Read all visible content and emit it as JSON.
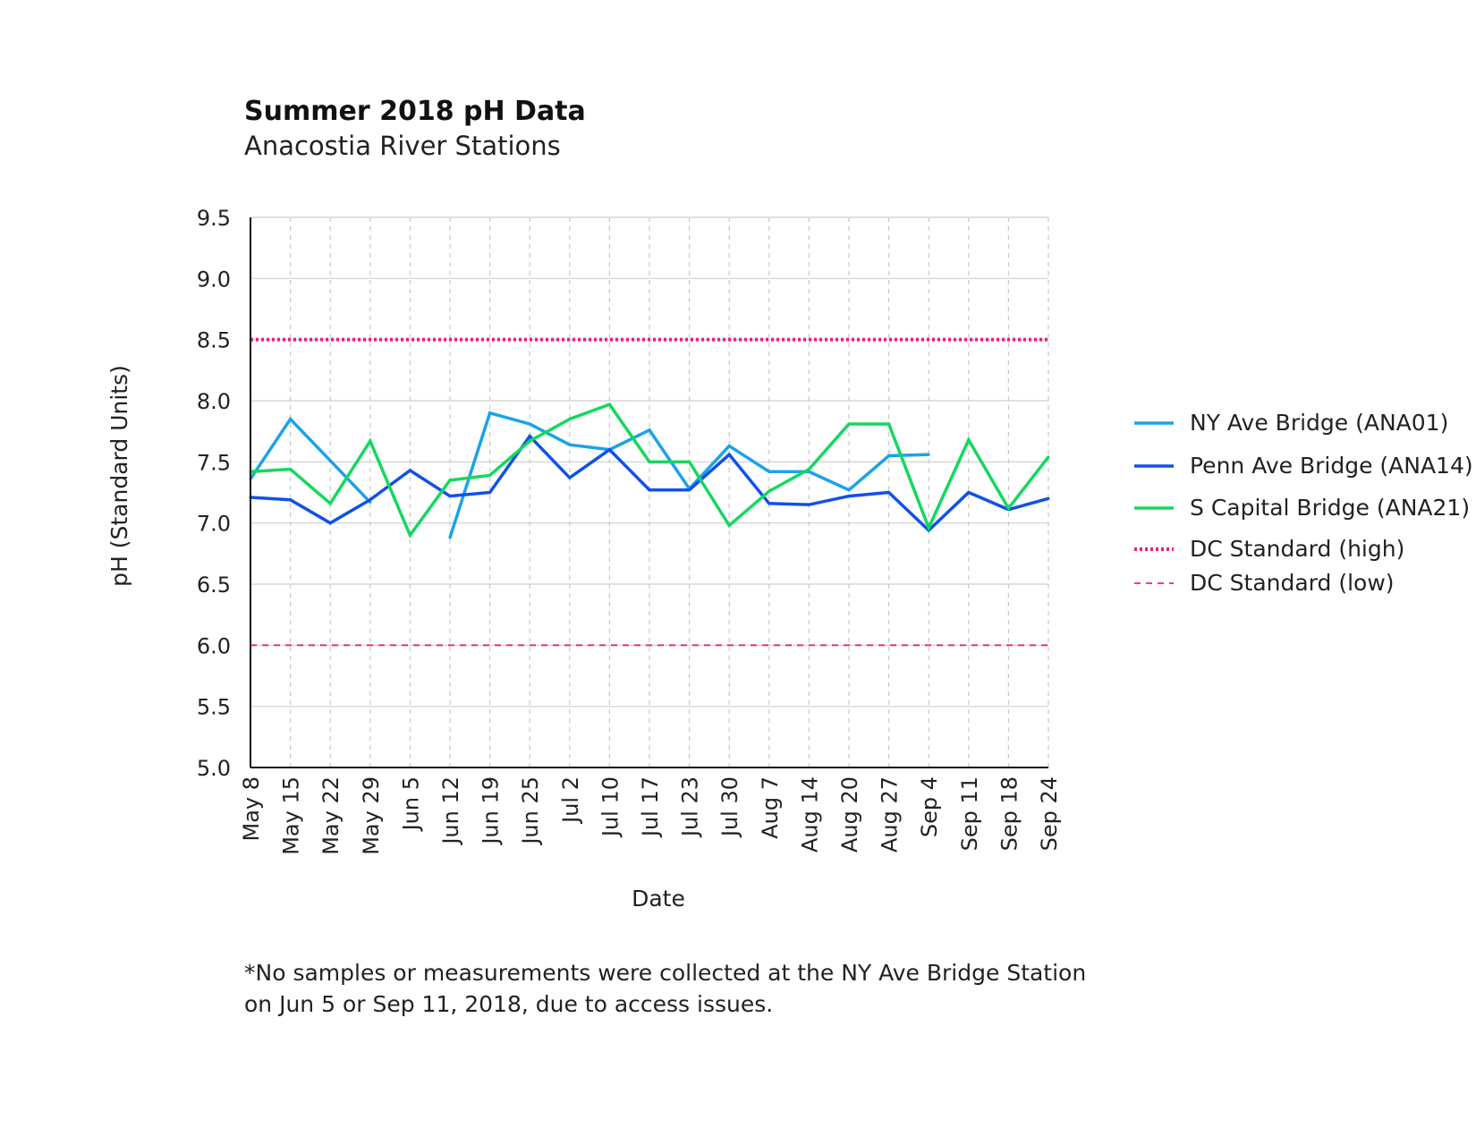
{
  "title": "Summer 2018 pH Data",
  "subtitle": "Anacostia River Stations",
  "note_lines": [
    "*No samples or measurements were collected at the NY Ave Bridge Station",
    "on Jun 5 or Sep 11, 2018, due to access issues."
  ],
  "chart_data": {
    "type": "line",
    "xlabel": "Date",
    "ylabel": "pH (Standard Units)",
    "ylim": [
      5.0,
      9.5
    ],
    "yticks": [
      "5.0",
      "5.5",
      "6.0",
      "6.5",
      "7.0",
      "7.5",
      "8.0",
      "8.5",
      "9.0",
      "9.5"
    ],
    "categories": [
      "May 8",
      "May 15",
      "May 22",
      "May 29",
      "Jun 5",
      "Jun 12",
      "Jun 19",
      "Jun 25",
      "Jul 2",
      "Jul 10",
      "Jul 17",
      "Jul 23",
      "Jul 30",
      "Aug 7",
      "Aug 14",
      "Aug 20",
      "Aug 27",
      "Sep 4",
      "Sep 11",
      "Sep 18",
      "Sep 24"
    ],
    "grid": true,
    "legend_position": "right",
    "series": [
      {
        "name": "NY Ave Bridge (ANA01)",
        "color": "#1aa3e8",
        "style": "solid",
        "values": [
          7.36,
          7.85,
          7.51,
          7.17,
          null,
          6.88,
          7.9,
          7.81,
          7.64,
          7.6,
          7.76,
          7.28,
          7.63,
          7.42,
          7.42,
          7.27,
          7.55,
          7.56,
          null,
          null,
          null
        ]
      },
      {
        "name": "Penn Ave Bridge (ANA14)",
        "color": "#1150e8",
        "style": "solid",
        "values": [
          7.21,
          7.19,
          7.0,
          7.19,
          7.43,
          7.22,
          7.25,
          7.71,
          7.37,
          7.6,
          7.27,
          7.27,
          7.56,
          7.16,
          7.15,
          7.22,
          7.25,
          6.94,
          7.25,
          7.11,
          7.2
        ]
      },
      {
        "name": "S Capital Bridge (ANA21)",
        "color": "#14d85e",
        "style": "solid",
        "values": [
          7.42,
          7.44,
          7.16,
          7.67,
          6.9,
          7.35,
          7.39,
          7.67,
          7.85,
          7.97,
          7.5,
          7.5,
          6.98,
          7.26,
          7.44,
          7.81,
          7.81,
          6.96,
          7.68,
          7.12,
          7.54
        ]
      },
      {
        "name": "DC Standard (high)",
        "color": "#f01e7c",
        "style": "dotted",
        "values": [
          8.5,
          8.5,
          8.5,
          8.5,
          8.5,
          8.5,
          8.5,
          8.5,
          8.5,
          8.5,
          8.5,
          8.5,
          8.5,
          8.5,
          8.5,
          8.5,
          8.5,
          8.5,
          8.5,
          8.5,
          8.5
        ]
      },
      {
        "name": "DC Standard (low)",
        "color": "#f01e7c",
        "style": "dashed",
        "values": [
          6.0,
          6.0,
          6.0,
          6.0,
          6.0,
          6.0,
          6.0,
          6.0,
          6.0,
          6.0,
          6.0,
          6.0,
          6.0,
          6.0,
          6.0,
          6.0,
          6.0,
          6.0,
          6.0,
          6.0,
          6.0
        ]
      }
    ]
  }
}
